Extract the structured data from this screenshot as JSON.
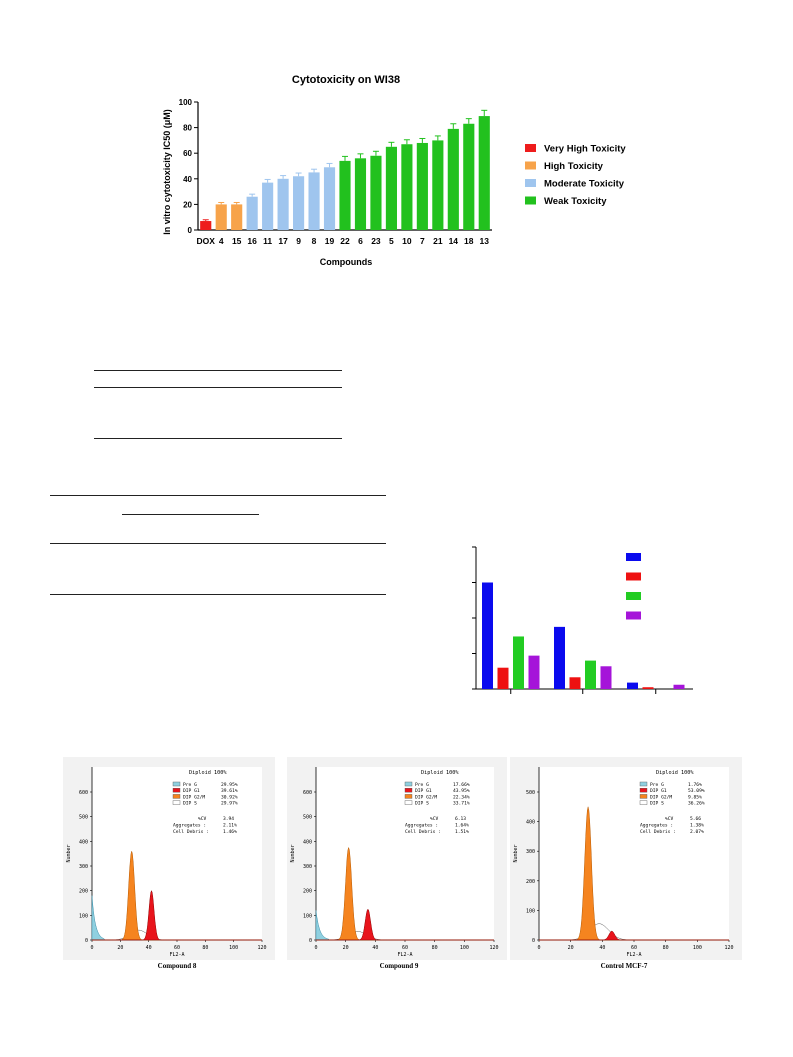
{
  "chart_data": [
    {
      "type": "bar",
      "title": "Cytotoxicity on WI38",
      "xlabel": "Compounds",
      "ylabel": "In vitro cytotoxicity IC50 (μM)",
      "ylim": [
        0,
        100
      ],
      "yticks": [
        0,
        20,
        40,
        60,
        80,
        100
      ],
      "categories": [
        "DOX",
        "4",
        "15",
        "16",
        "11",
        "17",
        "9",
        "8",
        "19",
        "22",
        "6",
        "23",
        "5",
        "10",
        "7",
        "21",
        "14",
        "18",
        "13"
      ],
      "values": [
        7,
        20,
        20,
        26,
        37,
        40,
        42,
        45,
        49,
        54,
        56,
        58,
        65,
        67,
        68,
        70,
        79,
        83,
        89
      ],
      "errors": [
        1,
        1.5,
        1.5,
        2,
        2.5,
        2.5,
        2.5,
        2.5,
        3,
        3.5,
        3.5,
        3.5,
        3.5,
        3.5,
        3.5,
        3.5,
        4,
        4,
        4.5
      ],
      "groups": [
        0,
        1,
        1,
        2,
        2,
        2,
        2,
        2,
        2,
        3,
        3,
        3,
        3,
        3,
        3,
        3,
        3,
        3,
        3
      ],
      "legend_position": "right",
      "legend": [
        {
          "label": "Very High Toxicity",
          "color": "#ee1c1c"
        },
        {
          "label": "High Toxicity",
          "color": "#f7a34a"
        },
        {
          "label": "Moderate Toxicity",
          "color": "#9fc5ee"
        },
        {
          "label": "Weak Toxicity",
          "color": "#22c11e"
        }
      ]
    },
    {
      "type": "bar",
      "categories": [
        "",
        "",
        ""
      ],
      "ylim": [
        0,
        4
      ],
      "series": [
        {
          "color": "#0a0aee",
          "values": [
            3.0,
            1.75,
            0.18
          ]
        },
        {
          "color": "#ee1111",
          "values": [
            0.6,
            0.33,
            0.05
          ]
        },
        {
          "color": "#22cc22",
          "values": [
            1.48,
            0.8,
            0.0
          ]
        },
        {
          "color": "#a514d9",
          "values": [
            0.94,
            0.64,
            0.12
          ]
        }
      ],
      "legend_position": "top-right"
    },
    {
      "type": "area",
      "title": "Diploid 100%",
      "xlabel": "FL2-A",
      "ylabel": "Number",
      "caption": "Compound 8",
      "xlim": [
        0,
        120
      ],
      "ylim": [
        0,
        600
      ],
      "xticks": [
        0,
        20,
        40,
        60,
        80,
        100,
        120
      ],
      "yticks": [
        0,
        100,
        200,
        300,
        400,
        500,
        600
      ],
      "stats": [
        {
          "name": "Pre G",
          "value": "29.95%"
        },
        {
          "name": "DIP G1",
          "value": "39.61%"
        },
        {
          "name": "DIP G2/M",
          "value": "30.92%"
        },
        {
          "name": "DIP S",
          "value": "29.97%"
        }
      ],
      "cv_label": "%CV",
      "cv": "3.94",
      "aggregates": "2.11%",
      "debris": "1.46%",
      "peaks": {
        "preg": 180,
        "g1": [
          28,
          360
        ],
        "g2m": [
          42,
          200
        ],
        "s": [
          33,
          40
        ]
      }
    },
    {
      "type": "area",
      "title": "Diploid 100%",
      "xlabel": "FL2-A",
      "ylabel": "Number",
      "caption": "Compound 9",
      "xlim": [
        0,
        120
      ],
      "ylim": [
        0,
        600
      ],
      "xticks": [
        0,
        20,
        40,
        60,
        80,
        100,
        120
      ],
      "yticks": [
        0,
        100,
        200,
        300,
        400,
        500,
        600
      ],
      "stats": [
        {
          "name": "Pre G",
          "value": "17.66%"
        },
        {
          "name": "DIP G1",
          "value": "43.95%"
        },
        {
          "name": "DIP G2/M",
          "value": "22.34%"
        },
        {
          "name": "DIP S",
          "value": "33.71%"
        }
      ],
      "cv_label": "%CV",
      "cv": "6.13",
      "aggregates": "1.64%",
      "debris": "1.51%",
      "peaks": {
        "preg": 120,
        "g1": [
          22,
          375
        ],
        "g2m": [
          35,
          125
        ],
        "s": [
          28,
          35
        ]
      }
    },
    {
      "type": "area",
      "title": "Diploid 100%",
      "xlabel": "FL2-A",
      "ylabel": "Number",
      "caption": "Control MCF-7",
      "xlim": [
        0,
        120
      ],
      "ylim": [
        0,
        500
      ],
      "xticks": [
        0,
        20,
        40,
        60,
        80,
        100,
        120
      ],
      "yticks": [
        0,
        100,
        200,
        300,
        400,
        500
      ],
      "stats": [
        {
          "name": "Pre G",
          "value": "1.76%"
        },
        {
          "name": "DIP G1",
          "value": "53.09%"
        },
        {
          "name": "DIP G2/M",
          "value": "9.85%"
        },
        {
          "name": "DIP S",
          "value": "36.26%"
        }
      ],
      "cv_label": "%CV",
      "cv": "5.66",
      "aggregates": "1.38%",
      "debris": "2.07%",
      "peaks": {
        "preg": 0,
        "g1": [
          31,
          450
        ],
        "g2m": [
          46,
          30
        ],
        "s": [
          38,
          55
        ]
      }
    }
  ]
}
